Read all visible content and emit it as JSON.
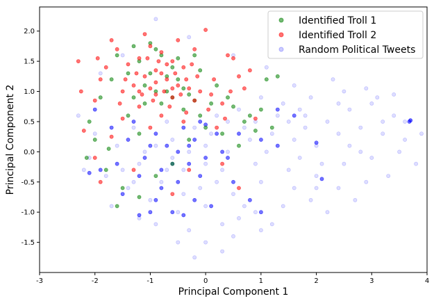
{
  "chart_data": {
    "type": "scatter",
    "title": "",
    "xlabel": "Principal Component 1",
    "ylabel": "Principal Component 2",
    "xlim": [
      -3,
      4
    ],
    "ylim": [
      -2.0,
      2.4
    ],
    "xticks": [
      "-3",
      "-2",
      "-1",
      "0",
      "1",
      "2",
      "3",
      "4"
    ],
    "yticks": [
      "-1.5",
      "-1.0",
      "-0.5",
      "0.0",
      "0.5",
      "1.0",
      "1.5",
      "2.0"
    ],
    "xtick_values": [
      -3,
      -2,
      -1,
      0,
      1,
      2,
      3,
      4
    ],
    "ytick_values": [
      -1.5,
      -1.0,
      -0.5,
      0.0,
      0.5,
      1.0,
      1.5,
      2.0
    ],
    "grid": false,
    "legend_position": "top-right",
    "series": [
      {
        "name": "Identified Troll 1",
        "color": "#008000",
        "alpha": 0.55,
        "points": [
          [
            -1.0,
            1.8
          ],
          [
            -0.9,
            1.7
          ],
          [
            -0.8,
            1.6
          ],
          [
            -1.2,
            1.5
          ],
          [
            -0.6,
            1.4
          ],
          [
            -1.4,
            1.3
          ],
          [
            -0.5,
            1.2
          ],
          [
            -1.1,
            1.1
          ],
          [
            -0.7,
            1.0
          ],
          [
            -0.3,
            0.95
          ],
          [
            -1.3,
            0.9
          ],
          [
            -0.2,
            0.85
          ],
          [
            0.1,
            0.8
          ],
          [
            -0.4,
            0.7
          ],
          [
            -1.6,
            1.6
          ],
          [
            -1.7,
            1.2
          ],
          [
            -0.1,
            1.35
          ],
          [
            0.2,
            1.1
          ],
          [
            0.5,
            0.75
          ],
          [
            0.8,
            0.6
          ],
          [
            1.0,
            0.7
          ],
          [
            1.2,
            0.4
          ],
          [
            1.3,
            1.25
          ],
          [
            1.1,
            1.2
          ],
          [
            0.9,
            0.35
          ],
          [
            -1.9,
            0.9
          ],
          [
            -2.1,
            0.5
          ],
          [
            -2.0,
            0.2
          ],
          [
            -1.8,
            -0.3
          ],
          [
            -1.5,
            -0.6
          ],
          [
            -0.9,
            -0.4
          ],
          [
            -0.6,
            -0.2
          ],
          [
            -0.3,
            0.2
          ],
          [
            0.0,
            0.4
          ],
          [
            0.3,
            0.3
          ],
          [
            0.6,
            0.1
          ],
          [
            -1.2,
            0.3
          ],
          [
            -1.4,
            0.6
          ],
          [
            -0.8,
            0.8
          ],
          [
            -0.5,
            1.55
          ],
          [
            -0.2,
            1.6
          ],
          [
            -1.3,
            1.75
          ],
          [
            -1.0,
            1.3
          ],
          [
            -0.7,
            1.25
          ],
          [
            -0.4,
            1.05
          ],
          [
            -0.6,
            0.9
          ],
          [
            -0.9,
            1.0
          ],
          [
            -1.1,
            0.8
          ],
          [
            0.4,
            0.9
          ],
          [
            -1.6,
            -0.9
          ],
          [
            -1.2,
            -0.75
          ],
          [
            -0.1,
            0.6
          ],
          [
            0.7,
            0.5
          ],
          [
            -2.15,
            -0.1
          ],
          [
            -1.75,
            0.05
          ]
        ]
      },
      {
        "name": "Identified Troll 2",
        "color": "#ff0000",
        "alpha": 0.55,
        "points": [
          [
            -1.0,
            1.75
          ],
          [
            -0.8,
            1.65
          ],
          [
            -1.2,
            1.55
          ],
          [
            -0.6,
            1.5
          ],
          [
            -1.4,
            1.45
          ],
          [
            -0.4,
            1.4
          ],
          [
            -0.9,
            1.35
          ],
          [
            -1.1,
            1.25
          ],
          [
            -0.7,
            1.2
          ],
          [
            -0.5,
            1.1
          ],
          [
            -1.3,
            1.1
          ],
          [
            -0.3,
            1.05
          ],
          [
            -0.1,
            1.0
          ],
          [
            -0.9,
            0.95
          ],
          [
            -0.6,
            0.9
          ],
          [
            -1.5,
            1.0
          ],
          [
            -0.2,
            0.85
          ],
          [
            0.1,
            0.95
          ],
          [
            0.3,
            0.8
          ],
          [
            0.6,
            1.25
          ],
          [
            0.8,
            1.35
          ],
          [
            0.7,
            1.05
          ],
          [
            0.5,
            1.55
          ],
          [
            0.4,
            1.6
          ],
          [
            0.0,
            2.02
          ],
          [
            -0.2,
            1.7
          ],
          [
            -1.6,
            1.7
          ],
          [
            -1.8,
            1.4
          ],
          [
            -1.9,
            1.2
          ],
          [
            -2.0,
            0.85
          ],
          [
            -2.2,
            0.35
          ],
          [
            -2.0,
            -0.1
          ],
          [
            -1.7,
            0.25
          ],
          [
            -1.5,
            0.55
          ],
          [
            -1.2,
            0.75
          ],
          [
            -0.8,
            0.6
          ],
          [
            -0.4,
            0.5
          ],
          [
            0.2,
            0.4
          ],
          [
            0.9,
            0.55
          ],
          [
            -1.0,
            0.4
          ],
          [
            -0.3,
            -0.3
          ],
          [
            -0.6,
            -0.7
          ],
          [
            0.3,
            -0.2
          ],
          [
            0.6,
            -0.6
          ],
          [
            -1.3,
            -0.3
          ],
          [
            -1.9,
            -0.5
          ],
          [
            -2.3,
            1.5
          ],
          [
            -1.7,
            1.85
          ],
          [
            -1.1,
            1.95
          ],
          [
            -0.5,
            1.85
          ],
          [
            -0.7,
            1.45
          ],
          [
            -1.0,
            1.05
          ],
          [
            -1.25,
            1.3
          ],
          [
            -0.85,
            1.5
          ],
          [
            -0.55,
            1.3
          ],
          [
            -0.35,
            1.2
          ],
          [
            -1.45,
            1.2
          ],
          [
            -0.95,
            0.85
          ],
          [
            -0.65,
            0.75
          ],
          [
            -0.15,
            1.25
          ],
          [
            0.15,
            1.2
          ],
          [
            -1.15,
            0.95
          ],
          [
            -0.45,
            0.95
          ],
          [
            -0.75,
            1.0
          ],
          [
            -1.05,
            1.55
          ],
          [
            -0.25,
            1.45
          ],
          [
            0.45,
            1.0
          ],
          [
            -1.55,
            0.8
          ],
          [
            0.05,
            0.7
          ],
          [
            -0.35,
            0.65
          ],
          [
            0.35,
            0.55
          ],
          [
            -2.25,
            1.0
          ],
          [
            -1.95,
            1.55
          ],
          [
            -0.9,
            1.15
          ],
          [
            -0.6,
            1.05
          ],
          [
            -1.2,
            1.0
          ],
          [
            -0.8,
            1.3
          ]
        ]
      },
      {
        "name": "Random Political Tweets",
        "color": "#0000ff",
        "alpha": 0.13,
        "points": [
          [
            -0.8,
            -0.5
          ],
          [
            -0.4,
            -0.3
          ],
          [
            0.0,
            -0.2
          ],
          [
            0.4,
            0.0
          ],
          [
            0.8,
            0.2
          ],
          [
            1.2,
            0.3
          ],
          [
            1.6,
            0.2
          ],
          [
            2.0,
            0.1
          ],
          [
            2.4,
            0.3
          ],
          [
            2.8,
            0.4
          ],
          [
            3.2,
            0.5
          ],
          [
            3.6,
            0.5
          ],
          [
            3.7,
            0.52
          ],
          [
            -1.2,
            -0.2
          ],
          [
            -1.6,
            0.1
          ],
          [
            -2.0,
            0.3
          ],
          [
            -0.6,
            0.2
          ],
          [
            -0.2,
            0.4
          ],
          [
            0.2,
            0.6
          ],
          [
            0.6,
            0.7
          ],
          [
            1.0,
            0.9
          ],
          [
            1.4,
            0.8
          ],
          [
            1.8,
            0.6
          ],
          [
            2.2,
            0.5
          ],
          [
            2.6,
            0.7
          ],
          [
            3.0,
            0.8
          ],
          [
            3.4,
            0.6
          ],
          [
            3.9,
            0.3
          ],
          [
            -1.0,
            -0.8
          ],
          [
            -0.5,
            -1.0
          ],
          [
            0.0,
            -0.9
          ],
          [
            0.5,
            -0.7
          ],
          [
            1.0,
            -0.5
          ],
          [
            1.5,
            -0.3
          ],
          [
            2.0,
            -0.4
          ],
          [
            2.5,
            -0.2
          ],
          [
            3.0,
            -0.1
          ],
          [
            3.5,
            0.0
          ],
          [
            -1.4,
            -0.6
          ],
          [
            -0.9,
            -1.2
          ],
          [
            -0.3,
            -1.3
          ],
          [
            0.3,
            -1.2
          ],
          [
            0.9,
            -1.0
          ],
          [
            1.4,
            -0.9
          ],
          [
            1.9,
            -0.8
          ],
          [
            2.4,
            -0.6
          ],
          [
            2.9,
            -0.5
          ],
          [
            -1.8,
            -0.4
          ],
          [
            -2.1,
            -0.1
          ],
          [
            -1.3,
            0.4
          ],
          [
            -0.7,
            0.5
          ],
          [
            0.1,
            0.3
          ],
          [
            0.7,
            0.4
          ],
          [
            1.3,
            0.6
          ],
          [
            1.9,
            0.9
          ],
          [
            2.5,
            1.0
          ],
          [
            3.1,
            0.9
          ],
          [
            0.0,
            -1.5
          ],
          [
            -0.5,
            -1.5
          ],
          [
            0.5,
            -1.4
          ],
          [
            1.0,
            -1.3
          ],
          [
            -0.2,
            -1.75
          ],
          [
            0.3,
            -1.65
          ],
          [
            1.6,
            1.1
          ],
          [
            2.3,
            1.2
          ],
          [
            2.9,
            1.05
          ],
          [
            3.4,
            0.95
          ],
          [
            -1.1,
            0.0
          ],
          [
            -0.3,
            0.0
          ],
          [
            0.9,
            -0.2
          ],
          [
            1.7,
            -0.1
          ],
          [
            2.6,
            0.1
          ],
          [
            -1.7,
            -0.9
          ],
          [
            -1.2,
            -1.1
          ],
          [
            0.6,
            -1.1
          ],
          [
            1.2,
            -1.2
          ],
          [
            2.2,
            -1.0
          ],
          [
            2.7,
            -0.8
          ],
          [
            3.3,
            -0.4
          ],
          [
            3.8,
            -0.2
          ],
          [
            -2.2,
            -0.3
          ],
          [
            -2.3,
            0.6
          ],
          [
            -1.9,
            1.3
          ],
          [
            -1.5,
            1.6
          ],
          [
            -0.9,
            2.2
          ],
          [
            -0.3,
            1.9
          ],
          [
            0.5,
            1.6
          ],
          [
            1.1,
            1.4
          ],
          [
            -0.6,
            -0.1
          ],
          [
            0.2,
            -0.5
          ],
          [
            1.1,
            0.0
          ],
          [
            1.8,
            0.4
          ],
          [
            2.1,
            -0.2
          ],
          [
            0.0,
            0.1
          ],
          [
            -0.9,
            0.1
          ],
          [
            -1.5,
            -0.3
          ],
          [
            0.4,
            0.5
          ],
          [
            1.5,
            0.5
          ],
          [
            2.8,
            0.0
          ],
          [
            3.6,
            0.2
          ],
          [
            -0.4,
            -0.7
          ],
          [
            0.7,
            -0.9
          ],
          [
            1.6,
            -0.6
          ],
          [
            2.0,
            -0.6
          ],
          [
            -1.3,
            -0.5
          ],
          [
            -0.7,
            -0.3
          ],
          [
            -0.1,
            -0.6
          ],
          [
            0.3,
            -0.3
          ],
          [
            0.9,
            0.5
          ],
          [
            1.7,
            0.7
          ],
          [
            2.4,
            0.8
          ],
          [
            3.2,
            0.3
          ]
        ]
      },
      {
        "name": "",
        "color": "#0000ff",
        "alpha": 0.55,
        "points": [
          [
            -1.4,
            0.2
          ],
          [
            -1.1,
            -0.1
          ],
          [
            -0.9,
            0.3
          ],
          [
            -0.6,
            -0.2
          ],
          [
            -0.3,
            0.1
          ],
          [
            0.0,
            -0.1
          ],
          [
            0.2,
            0.3
          ],
          [
            -1.2,
            -0.4
          ],
          [
            -0.8,
            -0.6
          ],
          [
            -0.5,
            -0.5
          ],
          [
            -0.1,
            -0.4
          ],
          [
            0.4,
            -0.1
          ],
          [
            -1.6,
            -0.2
          ],
          [
            -1.3,
            0.5
          ],
          [
            -0.7,
            0.1
          ],
          [
            -0.4,
            0.4
          ],
          [
            0.5,
            -0.5
          ],
          [
            -0.2,
            -0.8
          ],
          [
            -1.0,
            -1.0
          ],
          [
            -0.6,
            -1.0
          ],
          [
            0.8,
            -0.8
          ],
          [
            1.0,
            -1.0
          ],
          [
            1.6,
            0.6
          ],
          [
            1.3,
            0.7
          ],
          [
            2.0,
            0.15
          ],
          [
            2.1,
            -0.45
          ],
          [
            3.7,
            0.52
          ],
          [
            3.68,
            0.5
          ],
          [
            -0.1,
            0.5
          ],
          [
            0.1,
            -0.9
          ],
          [
            -0.9,
            -0.8
          ],
          [
            -1.5,
            -0.7
          ],
          [
            -1.9,
            -0.3
          ],
          [
            -0.3,
            -0.2
          ],
          [
            0.3,
            0.0
          ],
          [
            -0.5,
            0.0
          ],
          [
            -1.0,
            0.1
          ],
          [
            -0.8,
            -0.3
          ],
          [
            -0.2,
            0.2
          ],
          [
            0.6,
            0.3
          ],
          [
            1.0,
            0.2
          ],
          [
            1.3,
            0.1
          ],
          [
            -1.7,
            0.4
          ],
          [
            -2.1,
            -0.35
          ],
          [
            -2.0,
            0.7
          ],
          [
            0.0,
            0.45
          ],
          [
            -0.4,
            -1.05
          ],
          [
            -1.2,
            -1.05
          ]
        ]
      }
    ]
  }
}
